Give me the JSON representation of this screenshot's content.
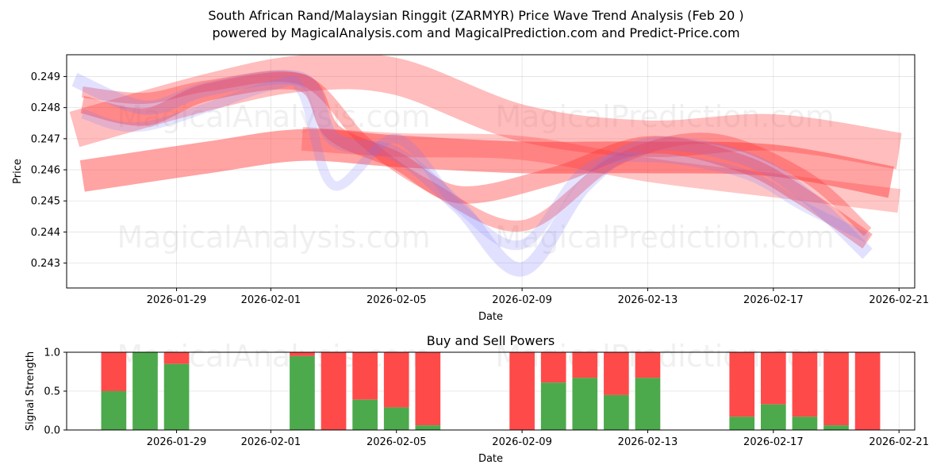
{
  "header": {
    "title_line1": "South African Rand/Malaysian Ringgit (ZARMYR) Price Wave Trend Analysis (Feb 20 )",
    "title_line2": "powered by MagicalAnalysis.com and MagicalPrediction.com and Predict-Price.com"
  },
  "watermarks": [
    "MagicalAnalysis.com",
    "MagicalPrediction.com"
  ],
  "colors": {
    "red": "#ff0000",
    "blue": "#0000ff",
    "green": "#4caa4c",
    "sellRed": "#ff4a4a"
  },
  "chart_data": [
    {
      "type": "line",
      "title": "",
      "xlabel": "Date",
      "ylabel": "Price",
      "grid": true,
      "xlim": [
        "2026-01-25T12:00",
        "2026-02-21T12:00"
      ],
      "ylim": [
        0.2422,
        0.2497
      ],
      "x_ticks": [
        "2026-01-29",
        "2026-02-01",
        "2026-02-05",
        "2026-02-09",
        "2026-02-13",
        "2026-02-17",
        "2026-02-21"
      ],
      "y_ticks": [
        0.243,
        0.244,
        0.245,
        0.246,
        0.247,
        0.248,
        0.249
      ],
      "y_tick_labels": [
        "0.243",
        "0.244",
        "0.245",
        "0.246",
        "0.247",
        "0.248",
        "0.249"
      ],
      "series": [
        {
          "name": "wave-red-1",
          "color": "red",
          "x": [
            "2026-01-26",
            "2026-01-28",
            "2026-01-30",
            "2026-02-02",
            "2026-02-03",
            "2026-02-05",
            "2026-02-07",
            "2026-02-10",
            "2026-02-13",
            "2026-02-16",
            "2026-02-18",
            "2026-02-20"
          ],
          "y": [
            0.2481,
            0.2477,
            0.2485,
            0.2488,
            0.2472,
            0.2463,
            0.2452,
            0.2458,
            0.2468,
            0.2462,
            0.2451,
            0.2437
          ]
        },
        {
          "name": "wave-red-2",
          "color": "red",
          "x": [
            "2026-01-26",
            "2026-01-28",
            "2026-01-30",
            "2026-02-02",
            "2026-02-04",
            "2026-02-06",
            "2026-02-09",
            "2026-02-12",
            "2026-02-15",
            "2026-02-18",
            "2026-02-20"
          ],
          "y": [
            0.2485,
            0.2483,
            0.2487,
            0.2489,
            0.2469,
            0.2455,
            0.2442,
            0.2463,
            0.247,
            0.2458,
            0.244
          ]
        },
        {
          "name": "band-red-1",
          "color": "red",
          "x": [
            "2026-01-25T18:00",
            "2026-01-30",
            "2026-02-02",
            "2026-02-05",
            "2026-02-09",
            "2026-02-13",
            "2026-02-17",
            "2026-02-21"
          ],
          "y": [
            0.2473,
            0.2485,
            0.2491,
            0.249,
            0.2475,
            0.247,
            0.2472,
            0.2466
          ]
        },
        {
          "name": "band-red-2",
          "color": "red",
          "x": [
            "2026-01-26",
            "2026-01-30",
            "2026-02-02",
            "2026-02-05",
            "2026-02-09",
            "2026-02-13",
            "2026-02-17",
            "2026-02-20T18:00"
          ],
          "y": [
            0.2458,
            0.2464,
            0.2468,
            0.2466,
            0.2464,
            0.2464,
            0.2463,
            0.2456
          ]
        },
        {
          "name": "band-red-3",
          "color": "red",
          "x": [
            "2026-02-02",
            "2026-02-05",
            "2026-02-09",
            "2026-02-13",
            "2026-02-17",
            "2026-02-21"
          ],
          "y": [
            0.247,
            0.2468,
            0.2467,
            0.246,
            0.2455,
            0.245
          ]
        },
        {
          "name": "wave-blue-1",
          "color": "blue",
          "x": [
            "2026-01-25T18:00",
            "2026-01-28",
            "2026-01-30",
            "2026-02-02",
            "2026-02-03",
            "2026-02-05",
            "2026-02-07",
            "2026-02-09",
            "2026-02-11",
            "2026-02-13",
            "2026-02-16",
            "2026-02-18",
            "2026-02-20"
          ],
          "y": [
            0.2489,
            0.248,
            0.2486,
            0.2489,
            0.247,
            0.2465,
            0.2448,
            0.2428,
            0.2455,
            0.2468,
            0.2464,
            0.2452,
            0.2433
          ]
        },
        {
          "name": "wave-blue-2",
          "color": "blue",
          "x": [
            "2026-01-26",
            "2026-01-28",
            "2026-02-01",
            "2026-02-02",
            "2026-02-03",
            "2026-02-05",
            "2026-02-07",
            "2026-02-09",
            "2026-02-11",
            "2026-02-13",
            "2026-02-16",
            "2026-02-18",
            "2026-02-20"
          ],
          "y": [
            0.2478,
            0.2474,
            0.2487,
            0.2485,
            0.2455,
            0.247,
            0.2448,
            0.2436,
            0.246,
            0.2464,
            0.2459,
            0.2448,
            0.2438
          ]
        }
      ]
    },
    {
      "type": "bar",
      "title": "Buy and Sell Powers",
      "xlabel": "Date",
      "ylabel": "Signal Strength",
      "grid": true,
      "xlim": [
        "2026-01-25T12:00",
        "2026-02-21T12:00"
      ],
      "ylim": [
        0,
        1
      ],
      "x_ticks": [
        "2026-01-29",
        "2026-02-01",
        "2026-02-05",
        "2026-02-09",
        "2026-02-13",
        "2026-02-17",
        "2026-02-21"
      ],
      "y_ticks": [
        0,
        0.5,
        1
      ],
      "y_tick_labels": [
        "0.0",
        "0.5",
        "1.0"
      ],
      "dates": [
        "2026-01-27",
        "2026-01-28",
        "2026-01-29",
        "2026-02-02",
        "2026-02-03",
        "2026-02-04",
        "2026-02-05",
        "2026-02-06",
        "2026-02-09",
        "2026-02-10",
        "2026-02-11",
        "2026-02-12",
        "2026-02-13",
        "2026-02-16",
        "2026-02-17",
        "2026-02-18",
        "2026-02-19",
        "2026-02-20"
      ],
      "buy": [
        0.5,
        1.0,
        0.85,
        0.95,
        0.0,
        0.39,
        0.29,
        0.06,
        0.0,
        0.61,
        0.67,
        0.45,
        0.67,
        0.17,
        0.33,
        0.17,
        0.06,
        0.0
      ]
    }
  ]
}
